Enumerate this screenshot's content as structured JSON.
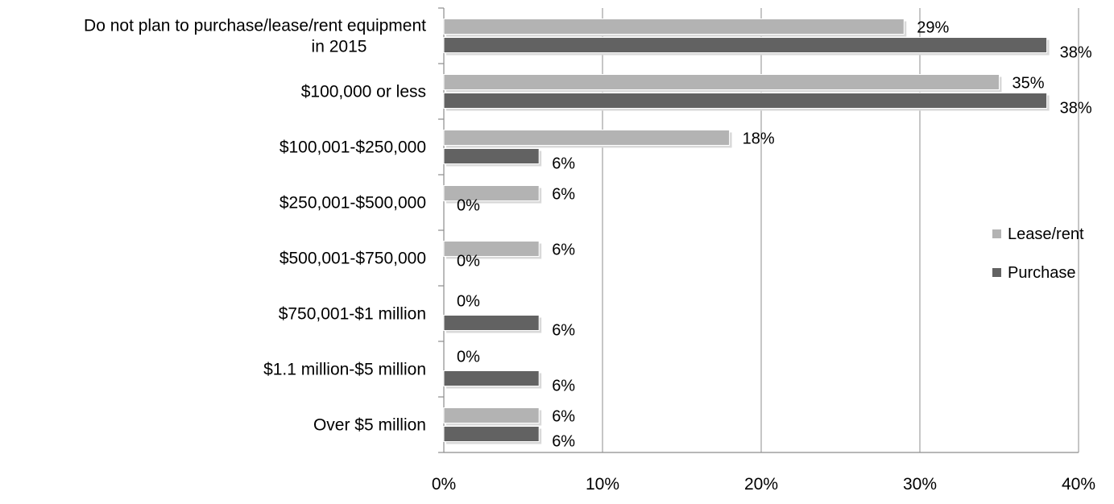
{
  "chart_data": {
    "type": "bar",
    "orientation": "horizontal",
    "title": "",
    "xlabel": "",
    "ylabel": "",
    "xlim": [
      0,
      40
    ],
    "x_ticks": [
      "0%",
      "10%",
      "20%",
      "30%",
      "40%"
    ],
    "grid": "vertical",
    "legend_position": "right",
    "categories": [
      [
        "Do not plan to purchase/lease/rent equipment",
        "in 2015"
      ],
      [
        "$100,000 or less"
      ],
      [
        "$100,001-$250,000"
      ],
      [
        "$250,001-$500,000"
      ],
      [
        "$500,001-$750,000"
      ],
      [
        "$750,001-$1 million"
      ],
      [
        "$1.1 million-$5 million"
      ],
      [
        "Over $5 million"
      ]
    ],
    "series": [
      {
        "name": "Lease/rent",
        "color": "#b3b3b3",
        "values": [
          29,
          35,
          18,
          6,
          6,
          0,
          0,
          6
        ],
        "labels": [
          "29%",
          "35%",
          "18%",
          "6%",
          "6%",
          "0%",
          "0%",
          "6%"
        ]
      },
      {
        "name": "Purchase",
        "color": "#626262",
        "values": [
          38,
          38,
          6,
          0,
          0,
          6,
          6,
          6
        ],
        "labels": [
          "38%",
          "38%",
          "6%",
          "0%",
          "0%",
          "6%",
          "6%",
          "6%"
        ]
      }
    ]
  }
}
